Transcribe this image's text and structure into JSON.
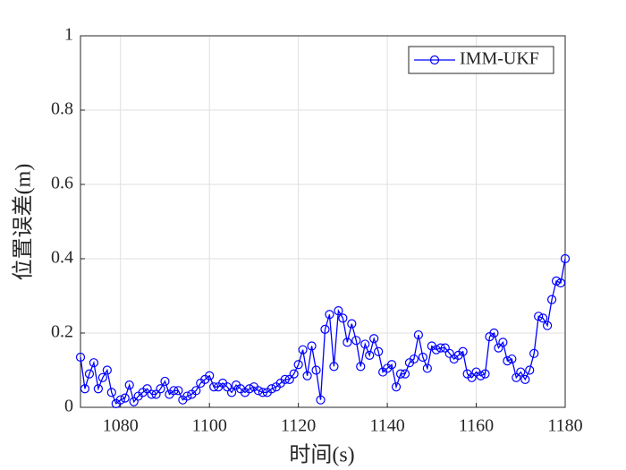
{
  "chart_data": {
    "type": "line",
    "x_label": "时间(s)",
    "y_label": "位置误差(m)",
    "x": [
      1071,
      1072,
      1073,
      1074,
      1075,
      1076,
      1077,
      1078,
      1079,
      1080,
      1081,
      1082,
      1083,
      1084,
      1085,
      1086,
      1087,
      1088,
      1089,
      1090,
      1091,
      1092,
      1093,
      1094,
      1095,
      1096,
      1097,
      1098,
      1099,
      1100,
      1101,
      1102,
      1103,
      1104,
      1105,
      1106,
      1107,
      1108,
      1109,
      1110,
      1111,
      1112,
      1113,
      1114,
      1115,
      1116,
      1117,
      1118,
      1119,
      1120,
      1121,
      1122,
      1123,
      1124,
      1125,
      1126,
      1127,
      1128,
      1129,
      1130,
      1131,
      1132,
      1133,
      1134,
      1135,
      1136,
      1137,
      1138,
      1139,
      1140,
      1141,
      1142,
      1143,
      1144,
      1145,
      1146,
      1147,
      1148,
      1149,
      1150,
      1151,
      1152,
      1153,
      1154,
      1155,
      1156,
      1157,
      1158,
      1159,
      1160,
      1161,
      1162,
      1163,
      1164,
      1165,
      1166,
      1167,
      1168,
      1169,
      1170,
      1171,
      1172,
      1173,
      1174,
      1175,
      1176,
      1177,
      1178,
      1179,
      1180
    ],
    "series": [
      {
        "name": "IMM-UKF",
        "color": "#0000ff",
        "values": [
          0.135,
          0.05,
          0.09,
          0.12,
          0.05,
          0.08,
          0.1,
          0.04,
          0.01,
          0.02,
          0.025,
          0.06,
          0.015,
          0.03,
          0.04,
          0.05,
          0.035,
          0.035,
          0.05,
          0.07,
          0.035,
          0.045,
          0.045,
          0.02,
          0.03,
          0.035,
          0.045,
          0.065,
          0.075,
          0.085,
          0.055,
          0.055,
          0.065,
          0.055,
          0.04,
          0.06,
          0.05,
          0.04,
          0.05,
          0.055,
          0.045,
          0.04,
          0.04,
          0.05,
          0.055,
          0.065,
          0.075,
          0.075,
          0.09,
          0.115,
          0.155,
          0.085,
          0.165,
          0.1,
          0.02,
          0.21,
          0.25,
          0.11,
          0.26,
          0.24,
          0.175,
          0.225,
          0.18,
          0.11,
          0.17,
          0.14,
          0.185,
          0.15,
          0.095,
          0.105,
          0.115,
          0.055,
          0.09,
          0.09,
          0.12,
          0.13,
          0.195,
          0.135,
          0.105,
          0.165,
          0.155,
          0.16,
          0.16,
          0.145,
          0.13,
          0.14,
          0.15,
          0.09,
          0.08,
          0.095,
          0.085,
          0.09,
          0.19,
          0.2,
          0.16,
          0.175,
          0.125,
          0.13,
          0.08,
          0.095,
          0.075,
          0.1,
          0.145,
          0.245,
          0.24,
          0.22,
          0.29,
          0.34,
          0.335,
          0.4
        ]
      }
    ],
    "xlim": [
      1071,
      1180
    ],
    "xticks": [
      1080,
      1100,
      1120,
      1140,
      1160,
      1180
    ],
    "ylim": [
      0,
      1
    ],
    "yticks": [
      0,
      0.2,
      0.4,
      0.6,
      0.8,
      1
    ],
    "grid": true,
    "legend": "upper right"
  }
}
